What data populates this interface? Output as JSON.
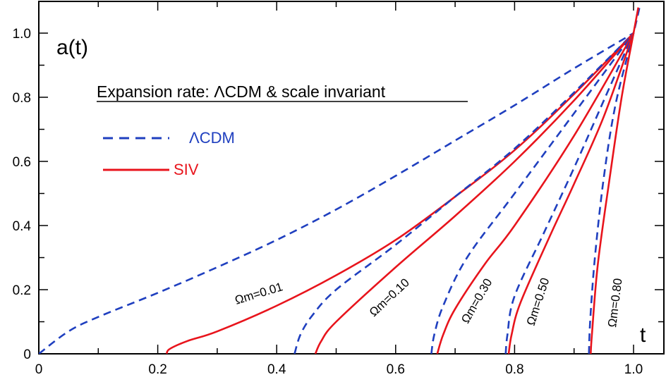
{
  "chart_data": {
    "type": "line",
    "title": "Expansion rate:  ΛCDM & scale invariant",
    "xlabel": "t",
    "ylabel": "a(t)",
    "xlim": [
      0,
      1.05
    ],
    "ylim": [
      0,
      1.08
    ],
    "x_ticks": [
      "0",
      "0.2",
      "0.4",
      "0.6",
      "0.8",
      "1.0"
    ],
    "y_ticks": [
      "0",
      "0.2",
      "0.4",
      "0.6",
      "0.8",
      "1.0"
    ],
    "legend": {
      "placement": "top-left",
      "entries": [
        {
          "label": "ΛCDM",
          "style": "dashed",
          "color": "#1f3fbf"
        },
        {
          "label": "SIV",
          "style": "solid",
          "color": "#e8141c"
        }
      ]
    },
    "annotations": [
      "Ωm=0.01",
      "Ωm=0.10",
      "Ωm=0.30",
      "Ωm=0.50",
      "Ωm=0.80"
    ],
    "series": [
      {
        "name": "ΛCDM",
        "omega_m": "0.01",
        "style": "dashed",
        "points": [
          [
            0,
            0
          ],
          [
            0.05,
            0.07
          ],
          [
            0.1,
            0.115
          ],
          [
            0.2,
            0.19
          ],
          [
            0.3,
            0.27
          ],
          [
            0.4,
            0.355
          ],
          [
            0.5,
            0.45
          ],
          [
            0.6,
            0.555
          ],
          [
            0.7,
            0.665
          ],
          [
            0.8,
            0.775
          ],
          [
            0.9,
            0.89
          ],
          [
            1.0,
            1.0
          ]
        ]
      },
      {
        "name": "SIV",
        "omega_m": "0.01",
        "style": "solid",
        "points": [
          [
            0.215,
            0
          ],
          [
            0.22,
            0.015
          ],
          [
            0.25,
            0.04
          ],
          [
            0.3,
            0.07
          ],
          [
            0.4,
            0.15
          ],
          [
            0.5,
            0.245
          ],
          [
            0.6,
            0.355
          ],
          [
            0.7,
            0.49
          ],
          [
            0.8,
            0.635
          ],
          [
            0.9,
            0.81
          ],
          [
            1.0,
            1.0
          ]
        ]
      },
      {
        "name": "ΛCDM",
        "omega_m": "0.10",
        "style": "dashed",
        "points": [
          [
            0.43,
            0
          ],
          [
            0.44,
            0.06
          ],
          [
            0.46,
            0.12
          ],
          [
            0.5,
            0.2
          ],
          [
            0.6,
            0.34
          ],
          [
            0.7,
            0.49
          ],
          [
            0.8,
            0.64
          ],
          [
            0.9,
            0.815
          ],
          [
            1.0,
            1.0
          ]
        ]
      },
      {
        "name": "SIV",
        "omega_m": "0.10",
        "style": "solid",
        "points": [
          [
            0.465,
            0
          ],
          [
            0.475,
            0.04
          ],
          [
            0.5,
            0.1
          ],
          [
            0.6,
            0.27
          ],
          [
            0.7,
            0.43
          ],
          [
            0.8,
            0.6
          ],
          [
            0.9,
            0.79
          ],
          [
            1.0,
            1.0
          ]
        ]
      },
      {
        "name": "ΛCDM",
        "omega_m": "0.30",
        "style": "dashed",
        "points": [
          [
            0.66,
            0
          ],
          [
            0.665,
            0.06
          ],
          [
            0.68,
            0.15
          ],
          [
            0.72,
            0.3
          ],
          [
            0.8,
            0.5
          ],
          [
            0.9,
            0.75
          ],
          [
            1.0,
            1.0
          ]
        ]
      },
      {
        "name": "SIV",
        "omega_m": "0.30",
        "style": "solid",
        "points": [
          [
            0.67,
            0
          ],
          [
            0.68,
            0.06
          ],
          [
            0.7,
            0.14
          ],
          [
            0.75,
            0.28
          ],
          [
            0.8,
            0.4
          ],
          [
            0.9,
            0.68
          ],
          [
            1.0,
            1.0
          ]
        ]
      },
      {
        "name": "ΛCDM",
        "omega_m": "0.50",
        "style": "dashed",
        "points": [
          [
            0.785,
            0
          ],
          [
            0.788,
            0.06
          ],
          [
            0.8,
            0.18
          ],
          [
            0.85,
            0.38
          ],
          [
            0.9,
            0.58
          ],
          [
            0.95,
            0.79
          ],
          [
            1.0,
            1.0
          ]
        ]
      },
      {
        "name": "SIV",
        "omega_m": "0.50",
        "style": "solid",
        "points": [
          [
            0.79,
            0
          ],
          [
            0.795,
            0.06
          ],
          [
            0.81,
            0.16
          ],
          [
            0.86,
            0.37
          ],
          [
            0.9,
            0.53
          ],
          [
            0.95,
            0.74
          ],
          [
            1.0,
            1.0
          ]
        ]
      },
      {
        "name": "ΛCDM",
        "omega_m": "0.80",
        "style": "dashed",
        "points": [
          [
            0.925,
            0
          ],
          [
            0.927,
            0.1
          ],
          [
            0.935,
            0.3
          ],
          [
            0.95,
            0.55
          ],
          [
            0.97,
            0.78
          ],
          [
            1.0,
            1.0
          ],
          [
            1.01,
            1.08
          ]
        ]
      },
      {
        "name": "SIV",
        "omega_m": "0.80",
        "style": "solid",
        "points": [
          [
            0.928,
            0
          ],
          [
            0.93,
            0.06
          ],
          [
            0.94,
            0.28
          ],
          [
            0.96,
            0.55
          ],
          [
            0.98,
            0.8
          ],
          [
            1.0,
            1.0
          ],
          [
            1.008,
            1.08
          ]
        ]
      }
    ]
  }
}
